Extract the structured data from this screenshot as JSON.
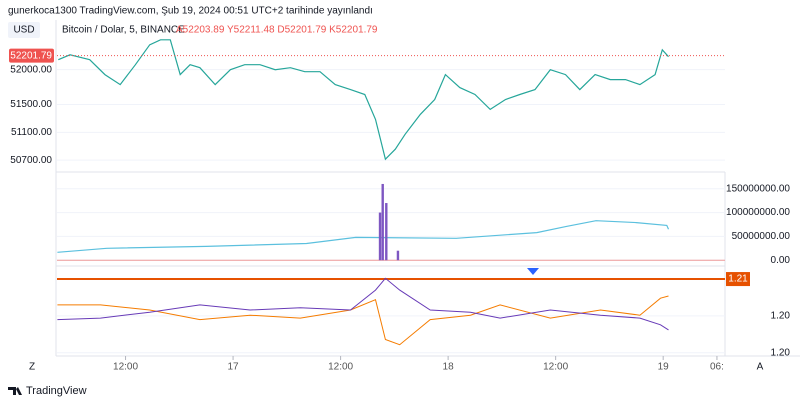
{
  "header": "gunerkoca1300 TradingView.com, Şub 19, 2024 00:51 UTC+2 tarihinde yayınlandı",
  "ui": {
    "currency": "USD",
    "left_button": "Z",
    "right_button": "A",
    "brand": "TradingView"
  },
  "chart_data": [
    {
      "type": "line",
      "title": "Bitcoin / Dolar, 5, BINANCE",
      "ohlc_label": "A52203.89 Y52211.48 D52201.79 K52201.79",
      "last_price": {
        "value": 52201.79,
        "label": "52201.79"
      },
      "color": "#26a69a",
      "x": [
        4.5,
        5.8,
        8.0,
        9.7,
        11.4,
        13.1,
        14.7,
        15.9,
        17.0,
        18.1,
        19.2,
        20.3,
        22.0,
        23.7,
        25.3,
        27.0,
        28.7,
        30.4,
        32.0,
        33.7,
        35.4,
        37.1,
        38.7,
        39.9,
        41.0,
        42.1,
        43.2,
        44.9,
        46.5,
        47.7,
        49.3,
        51.0,
        52.7,
        54.4,
        56.0,
        57.7,
        59.4,
        61.1,
        62.7,
        64.4,
        66.1,
        67.8,
        69.4,
        71.1,
        71.9,
        72.6
      ],
      "values": [
        52143,
        52214,
        52143,
        51929,
        51786,
        52071,
        52357,
        52429,
        52429,
        51929,
        52071,
        52029,
        51786,
        52000,
        52071,
        52071,
        52000,
        52029,
        51971,
        51971,
        51786,
        51714,
        51643,
        51286,
        50714,
        50857,
        51071,
        51357,
        51571,
        51929,
        51743,
        51643,
        51429,
        51571,
        51643,
        51714,
        52000,
        51929,
        51714,
        51929,
        51857,
        51857,
        51786,
        51929,
        52286,
        52186
      ],
      "ylim": [
        50530,
        52570
      ],
      "yticks": [
        {
          "value": 52000,
          "label": "52000.00"
        },
        {
          "value": 51500,
          "label": "51500.00"
        },
        {
          "value": 51100,
          "label": "51100.00"
        },
        {
          "value": 50700,
          "label": "50700.00"
        }
      ]
    },
    {
      "type": "volume",
      "series": [
        {
          "kind": "line",
          "color": "#5bc0de",
          "x": [
            4.4,
            9.9,
            21.0,
            32.2,
            37.7,
            48.9,
            57.9,
            61.2,
            64.5,
            69.0,
            72.4,
            72.6
          ],
          "values": [
            16700000,
            25000000,
            29000000,
            35000000,
            48000000,
            46000000,
            58000000,
            71000000,
            83000000,
            79000000,
            73000000,
            65000000
          ]
        },
        {
          "kind": "bar",
          "color": "#7e57c2",
          "x": [
            40.4,
            40.7,
            41.1,
            42.4
          ],
          "values": [
            100000000,
            160000000,
            120000000,
            20000000
          ]
        }
      ],
      "ylim": [
        -10000000,
        183000000
      ],
      "yticks": [
        {
          "value": 150000000,
          "label": "150000000.00"
        },
        {
          "value": 100000000,
          "label": "100000000.00"
        },
        {
          "value": 50000000,
          "label": "50000000.00"
        },
        {
          "value": 0,
          "label": "0.00"
        }
      ]
    },
    {
      "type": "multiline",
      "level": {
        "value": 1.21,
        "label": "1.21",
        "color": "#e65100"
      },
      "series": [
        {
          "color": "#f57c00",
          "x": [
            4.4,
            9.2,
            14.7,
            20.3,
            25.9,
            31.5,
            37.1,
            39.9,
            41.0,
            42.6,
            46.0,
            50.5,
            53.8,
            59.4,
            65.0,
            69.4,
            71.7,
            72.6
          ],
          "values": [
            1.2065,
            1.2065,
            1.2058,
            1.2045,
            1.2051,
            1.2047,
            1.2058,
            1.2072,
            1.2018,
            1.2011,
            1.2045,
            1.2051,
            1.2065,
            1.2047,
            1.2058,
            1.2051,
            1.2074,
            1.2077
          ]
        },
        {
          "color": "#673ab7",
          "x": [
            4.4,
            9.2,
            14.7,
            20.3,
            25.9,
            31.5,
            37.1,
            39.9,
            41.0,
            42.6,
            46.0,
            50.5,
            53.8,
            59.4,
            65.0,
            69.4,
            71.7,
            72.6
          ],
          "values": [
            1.2045,
            1.2047,
            1.2055,
            1.2065,
            1.2058,
            1.2061,
            1.2058,
            1.2085,
            1.2101,
            1.2085,
            1.2058,
            1.2055,
            1.2047,
            1.2058,
            1.2051,
            1.2047,
            1.2038,
            1.2031
          ]
        }
      ],
      "ylim": [
        1.1997,
        1.2115
      ],
      "yticks": [
        {
          "value": 1.205,
          "label": "1.20"
        },
        {
          "value": 1.2,
          "label": "1.20"
        }
      ],
      "xlim": [
        4.35,
        78.9
      ],
      "xticks": [
        {
          "value": 12,
          "label": "12:00"
        },
        {
          "value": 24,
          "label": "17"
        },
        {
          "value": 36,
          "label": "12:00"
        },
        {
          "value": 48,
          "label": "18"
        },
        {
          "value": 60,
          "label": "12:00"
        },
        {
          "value": 72,
          "label": "19"
        },
        {
          "value": 78,
          "label": "06:"
        }
      ]
    }
  ]
}
